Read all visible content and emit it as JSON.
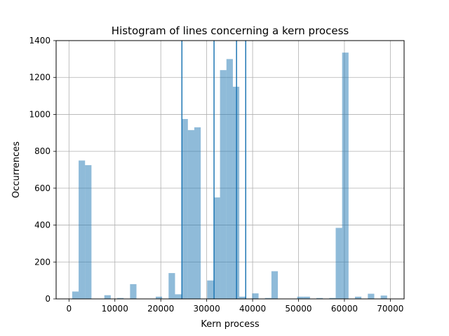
{
  "chart_data": {
    "type": "bar",
    "title": "Histogram of lines concerning a kern process",
    "xlabel": "Kern process",
    "ylabel": "Occurrences",
    "xlim": [
      -2800,
      73000
    ],
    "ylim": [
      0,
      1400
    ],
    "xticks": [
      0,
      10000,
      20000,
      30000,
      40000,
      50000,
      60000,
      70000
    ],
    "yticks": [
      0,
      200,
      400,
      600,
      800,
      1000,
      1200,
      1400
    ],
    "grid": true,
    "bar_color": "#1f77b4",
    "bar_alpha": 0.5,
    "line_color": "#1f77b4",
    "bin_width": 1400,
    "bins": [
      {
        "x0": 700,
        "value": 40
      },
      {
        "x0": 2100,
        "value": 750
      },
      {
        "x0": 3500,
        "value": 725
      },
      {
        "x0": 7700,
        "value": 20
      },
      {
        "x0": 10500,
        "value": 5
      },
      {
        "x0": 13300,
        "value": 80
      },
      {
        "x0": 18900,
        "value": 12
      },
      {
        "x0": 21700,
        "value": 140
      },
      {
        "x0": 23100,
        "value": 25
      },
      {
        "x0": 24500,
        "value": 975
      },
      {
        "x0": 25900,
        "value": 915
      },
      {
        "x0": 27300,
        "value": 930
      },
      {
        "x0": 30100,
        "value": 100
      },
      {
        "x0": 31500,
        "value": 550
      },
      {
        "x0": 32900,
        "value": 1240
      },
      {
        "x0": 34300,
        "value": 1300
      },
      {
        "x0": 35700,
        "value": 1150
      },
      {
        "x0": 37100,
        "value": 12
      },
      {
        "x0": 39900,
        "value": 30
      },
      {
        "x0": 42700,
        "value": 5
      },
      {
        "x0": 44100,
        "value": 150
      },
      {
        "x0": 49700,
        "value": 12
      },
      {
        "x0": 51100,
        "value": 12
      },
      {
        "x0": 53900,
        "value": 5
      },
      {
        "x0": 56700,
        "value": 5
      },
      {
        "x0": 58100,
        "value": 385
      },
      {
        "x0": 59500,
        "value": 1335
      },
      {
        "x0": 62300,
        "value": 12
      },
      {
        "x0": 65100,
        "value": 28
      },
      {
        "x0": 67900,
        "value": 18
      }
    ],
    "vertical_lines": [
      24600,
      31600,
      36500,
      38500
    ]
  }
}
